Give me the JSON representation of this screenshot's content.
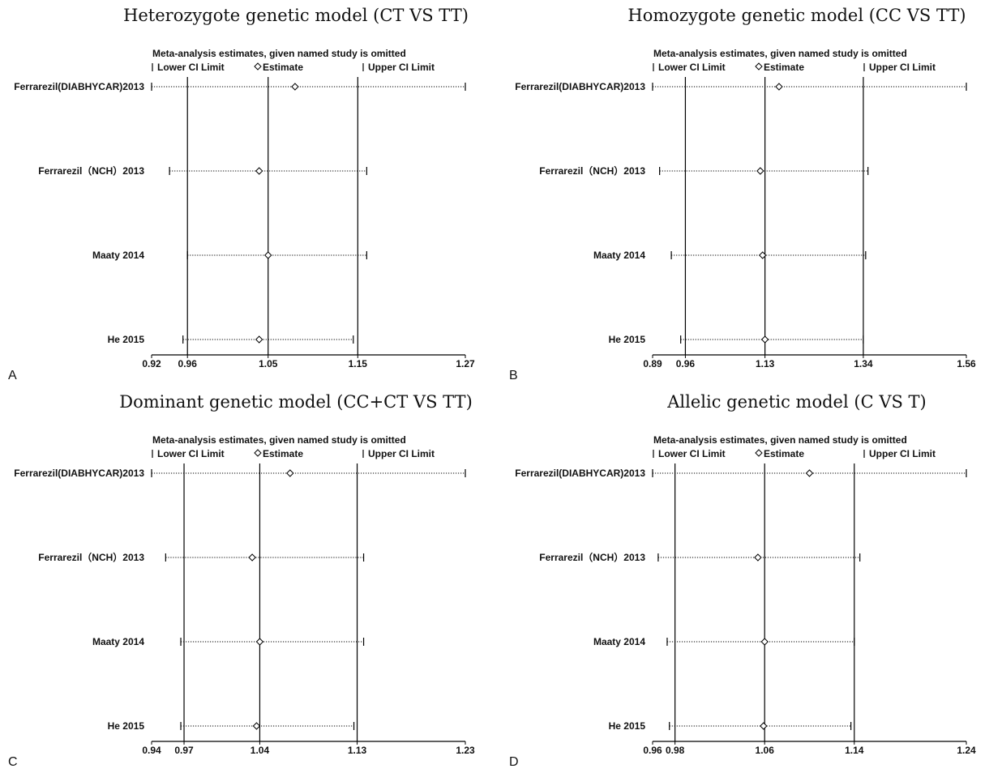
{
  "legend": {
    "header": "Meta-analysis estimates, given named study is omitted",
    "lower": "Lower CI Limit",
    "estimate": "Estimate",
    "upper": "Upper CI Limit"
  },
  "chart_data": [
    {
      "type": "sensitivity-forest",
      "panel_letter": "A",
      "title": "Heterozygote genetic model (CT VS TT)",
      "xlim": [
        0.92,
        1.27
      ],
      "ticks": [
        0.92,
        0.96,
        1.05,
        1.15,
        1.27
      ],
      "tick_labels": [
        "0.92",
        "0.96",
        "1.05",
        "1.15",
        "1.27"
      ],
      "reference_lines": [
        0.96,
        1.05,
        1.15
      ],
      "studies": [
        {
          "label": "Ferrarezil(DIABHYCAR)2013",
          "lower": 0.92,
          "estimate": 1.08,
          "upper": 1.27
        },
        {
          "label": "Ferrarezil（NCH）2013",
          "lower": 0.94,
          "estimate": 1.04,
          "upper": 1.16
        },
        {
          "label": "Maaty 2014",
          "lower": 0.96,
          "estimate": 1.05,
          "upper": 1.16
        },
        {
          "label": "He 2015",
          "lower": 0.955,
          "estimate": 1.04,
          "upper": 1.145
        }
      ]
    },
    {
      "type": "sensitivity-forest",
      "panel_letter": "B",
      "title": "Homozygote genetic model (CC VS TT)",
      "xlim": [
        0.89,
        1.56
      ],
      "ticks": [
        0.89,
        0.96,
        1.13,
        1.34,
        1.56
      ],
      "tick_labels": [
        "0.89",
        "0.96",
        "1.13",
        "1.34",
        "1.56"
      ],
      "reference_lines": [
        0.96,
        1.13,
        1.34
      ],
      "studies": [
        {
          "label": "Ferrarezil(DIABHYCAR)2013",
          "lower": 0.89,
          "estimate": 1.16,
          "upper": 1.56
        },
        {
          "label": "Ferrarezil（NCH）2013",
          "lower": 0.905,
          "estimate": 1.12,
          "upper": 1.35
        },
        {
          "label": "Maaty 2014",
          "lower": 0.93,
          "estimate": 1.125,
          "upper": 1.345
        },
        {
          "label": "He 2015",
          "lower": 0.95,
          "estimate": 1.13,
          "upper": 1.34
        }
      ]
    },
    {
      "type": "sensitivity-forest",
      "panel_letter": "C",
      "title": "Dominant genetic model (CC+CT VS TT)",
      "xlim": [
        0.94,
        1.23
      ],
      "ticks": [
        0.94,
        0.97,
        1.04,
        1.13,
        1.23
      ],
      "tick_labels": [
        "0.94",
        "0.97",
        "1.04",
        "1.13",
        "1.23"
      ],
      "reference_lines": [
        0.97,
        1.04,
        1.13
      ],
      "studies": [
        {
          "label": "Ferrarezil(DIABHYCAR)2013",
          "lower": 0.94,
          "estimate": 1.068,
          "upper": 1.23
        },
        {
          "label": "Ferrarezil（NCH）2013",
          "lower": 0.953,
          "estimate": 1.033,
          "upper": 1.136
        },
        {
          "label": "Maaty 2014",
          "lower": 0.967,
          "estimate": 1.04,
          "upper": 1.136
        },
        {
          "label": "He 2015",
          "lower": 0.967,
          "estimate": 1.037,
          "upper": 1.127
        }
      ]
    },
    {
      "type": "sensitivity-forest",
      "panel_letter": "D",
      "title": "Allelic genetic model (C VS T)",
      "xlim": [
        0.96,
        1.24
      ],
      "ticks": [
        0.96,
        0.98,
        1.06,
        1.14,
        1.24
      ],
      "tick_labels": [
        "0.96",
        "0.98",
        "1.06",
        "1.14",
        "1.24"
      ],
      "reference_lines": [
        0.98,
        1.06,
        1.14
      ],
      "studies": [
        {
          "label": "Ferrarezil(DIABHYCAR)2013",
          "lower": 0.96,
          "estimate": 1.1,
          "upper": 1.24
        },
        {
          "label": "Ferrarezil（NCH）2013",
          "lower": 0.965,
          "estimate": 1.054,
          "upper": 1.145
        },
        {
          "label": "Maaty 2014",
          "lower": 0.973,
          "estimate": 1.06,
          "upper": 1.14
        },
        {
          "label": "He 2015",
          "lower": 0.975,
          "estimate": 1.059,
          "upper": 1.137
        }
      ]
    }
  ]
}
